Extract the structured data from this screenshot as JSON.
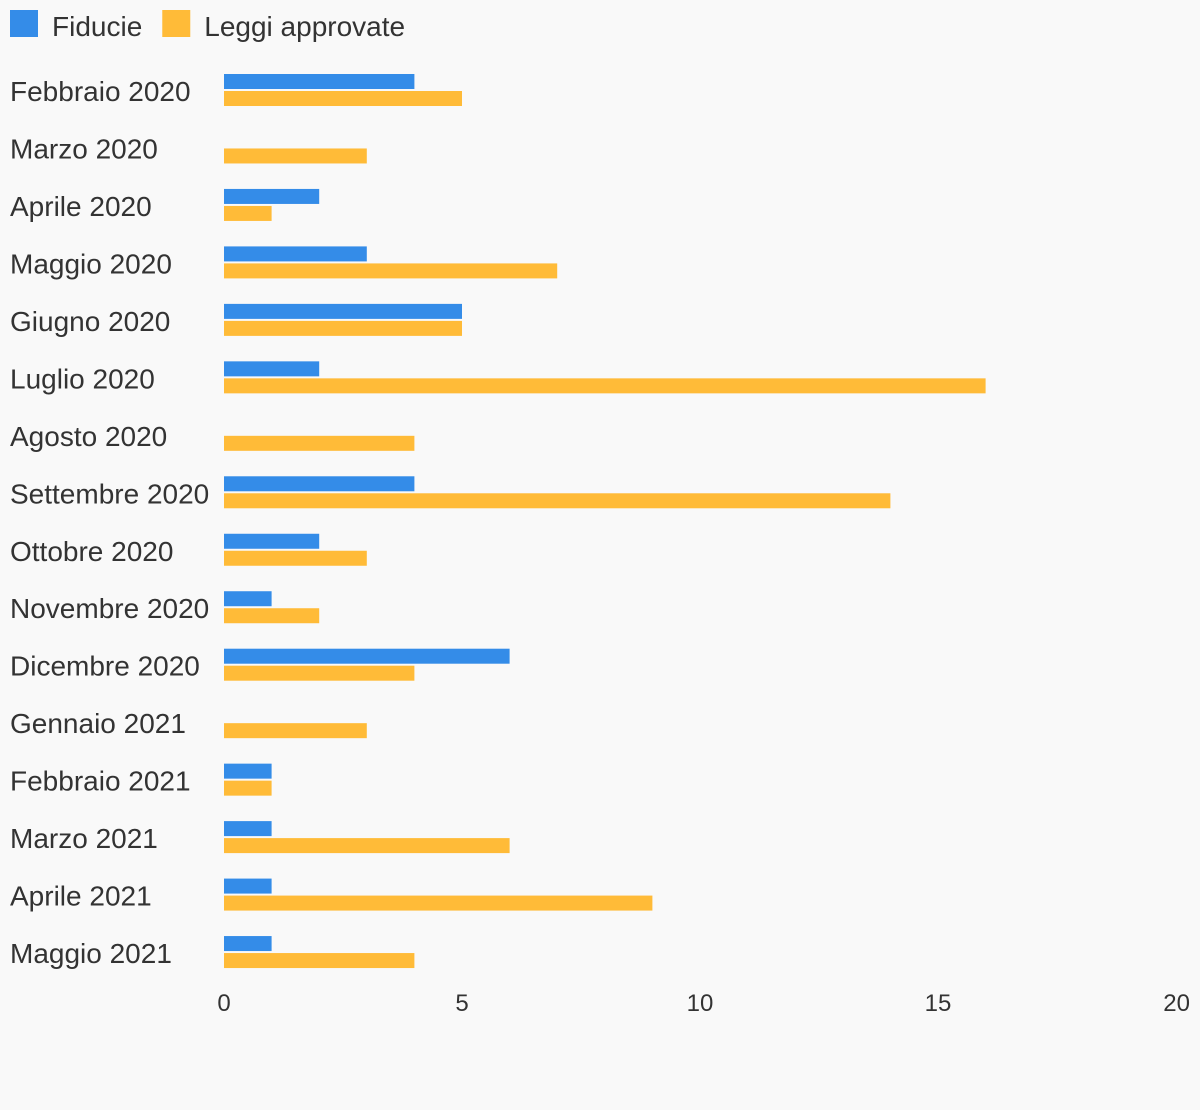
{
  "chart_data": {
    "type": "bar",
    "orientation": "horizontal",
    "categories": [
      "Febbraio 2020",
      "Marzo 2020",
      "Aprile 2020",
      "Maggio 2020",
      "Giugno 2020",
      "Luglio 2020",
      "Agosto 2020",
      "Settembre 2020",
      "Ottobre 2020",
      "Novembre 2020",
      "Dicembre 2020",
      "Gennaio 2021",
      "Febbraio 2021",
      "Marzo 2021",
      "Aprile 2021",
      "Maggio 2021"
    ],
    "series": [
      {
        "name": "Fiducie",
        "color": "#348ce8",
        "values": [
          4,
          0,
          2,
          3,
          5,
          2,
          0,
          4,
          2,
          1,
          6,
          0,
          1,
          1,
          1,
          1
        ]
      },
      {
        "name": "Leggi approvate",
        "color": "#ffbb38",
        "values": [
          5,
          3,
          1,
          7,
          5,
          16,
          4,
          14,
          3,
          2,
          4,
          3,
          1,
          6,
          9,
          4
        ]
      }
    ],
    "xlim": [
      0,
      20
    ],
    "xticks": [
      0,
      5,
      10,
      15,
      20
    ],
    "legend_position": "top-left",
    "grid": false
  }
}
